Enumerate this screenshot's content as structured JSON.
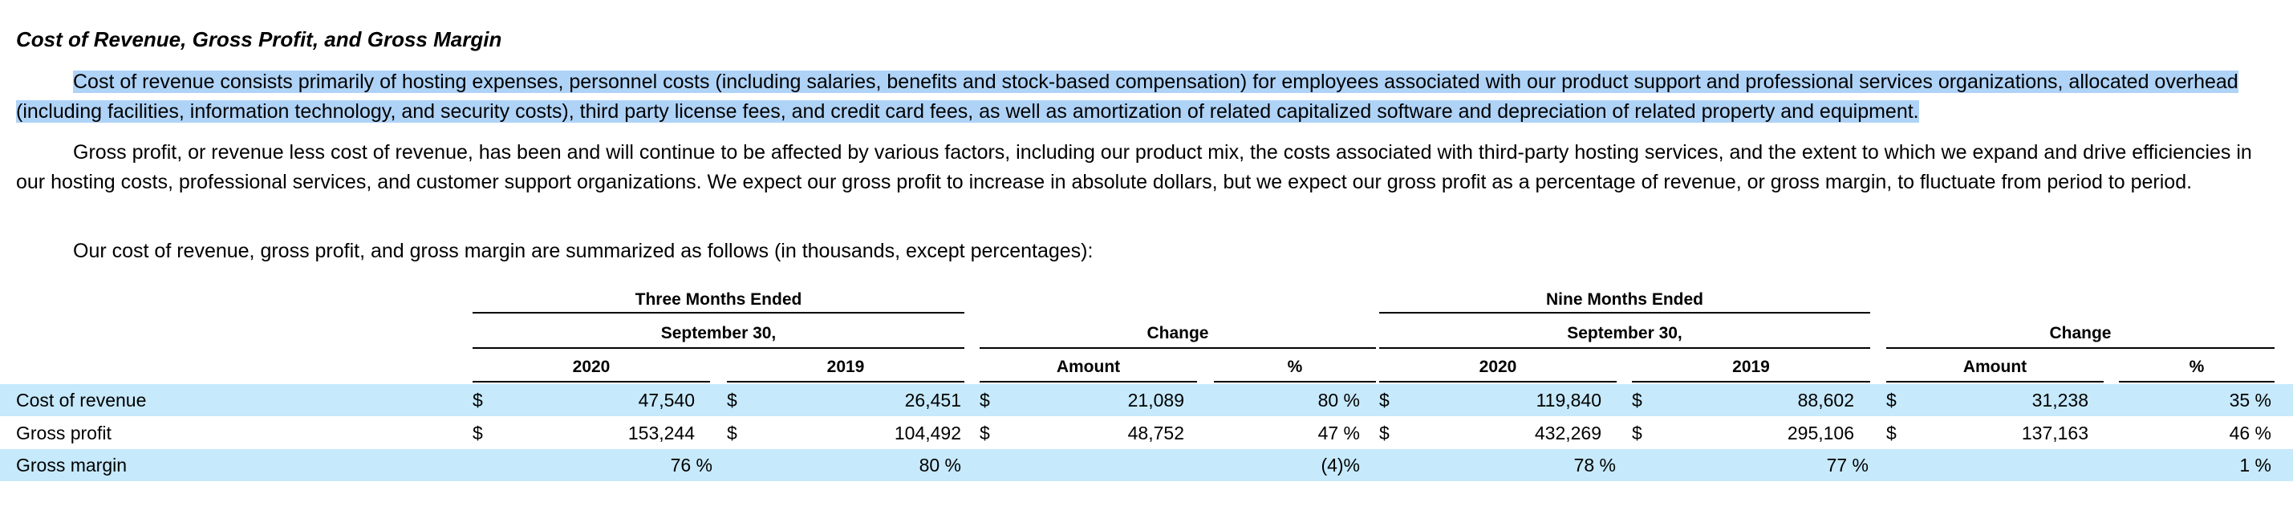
{
  "title": "Cost of Revenue, Gross Profit, and Gross Margin",
  "paragraphs": [
    "Cost of revenue consists primarily of hosting expenses, personnel costs (including salaries, benefits and stock-based compensation) for employees associated with our product support and professional services organizations, allocated overhead (including facilities, information technology, and security costs), third party license fees, and credit card fees, as well as amortization of related capitalized software and depreciation of related property and equipment.",
    "Gross profit, or revenue less cost of revenue, has been and will continue to be affected by various factors, including our product mix, the costs associated with third-party hosting services, and the extent to which we expand and drive efficiencies in our hosting costs, professional services, and customer support organizations. We expect our gross profit to increase in absolute dollars, but we expect our gross profit as a percentage of revenue, or gross margin, to fluctuate from period to period.",
    "Our cost of revenue, gross profit, and gross margin are summarized as follows (in thousands, except percentages):"
  ],
  "table": {
    "groups": [
      {
        "title": "Three Months Ended",
        "subtitle": "September 30,"
      },
      {
        "title": "Change"
      },
      {
        "title": "Nine Months Ended",
        "subtitle": "September 30,"
      },
      {
        "title": "Change"
      }
    ],
    "columns": [
      "2020",
      "2019",
      "Amount",
      "%",
      "2020",
      "2019",
      "Amount",
      "%"
    ],
    "rows": [
      {
        "label": "Cost of revenue",
        "cells": [
          "$",
          "47,540",
          "$",
          "26,451",
          "$",
          "21,089",
          "80 %",
          "$",
          "119,840",
          "$",
          "88,602",
          "$",
          "31,238",
          "35 %"
        ]
      },
      {
        "label": "Gross profit",
        "cells": [
          "$",
          "153,244",
          "$",
          "104,492",
          "$",
          "48,752",
          "47 %",
          "$",
          "432,269",
          "$",
          "295,106",
          "$",
          "137,163",
          "46 %"
        ]
      },
      {
        "label": "Gross margin",
        "cells": [
          "76 %",
          "80 %",
          "(4)%",
          "78 %",
          "77 %",
          "1 %"
        ]
      }
    ]
  }
}
